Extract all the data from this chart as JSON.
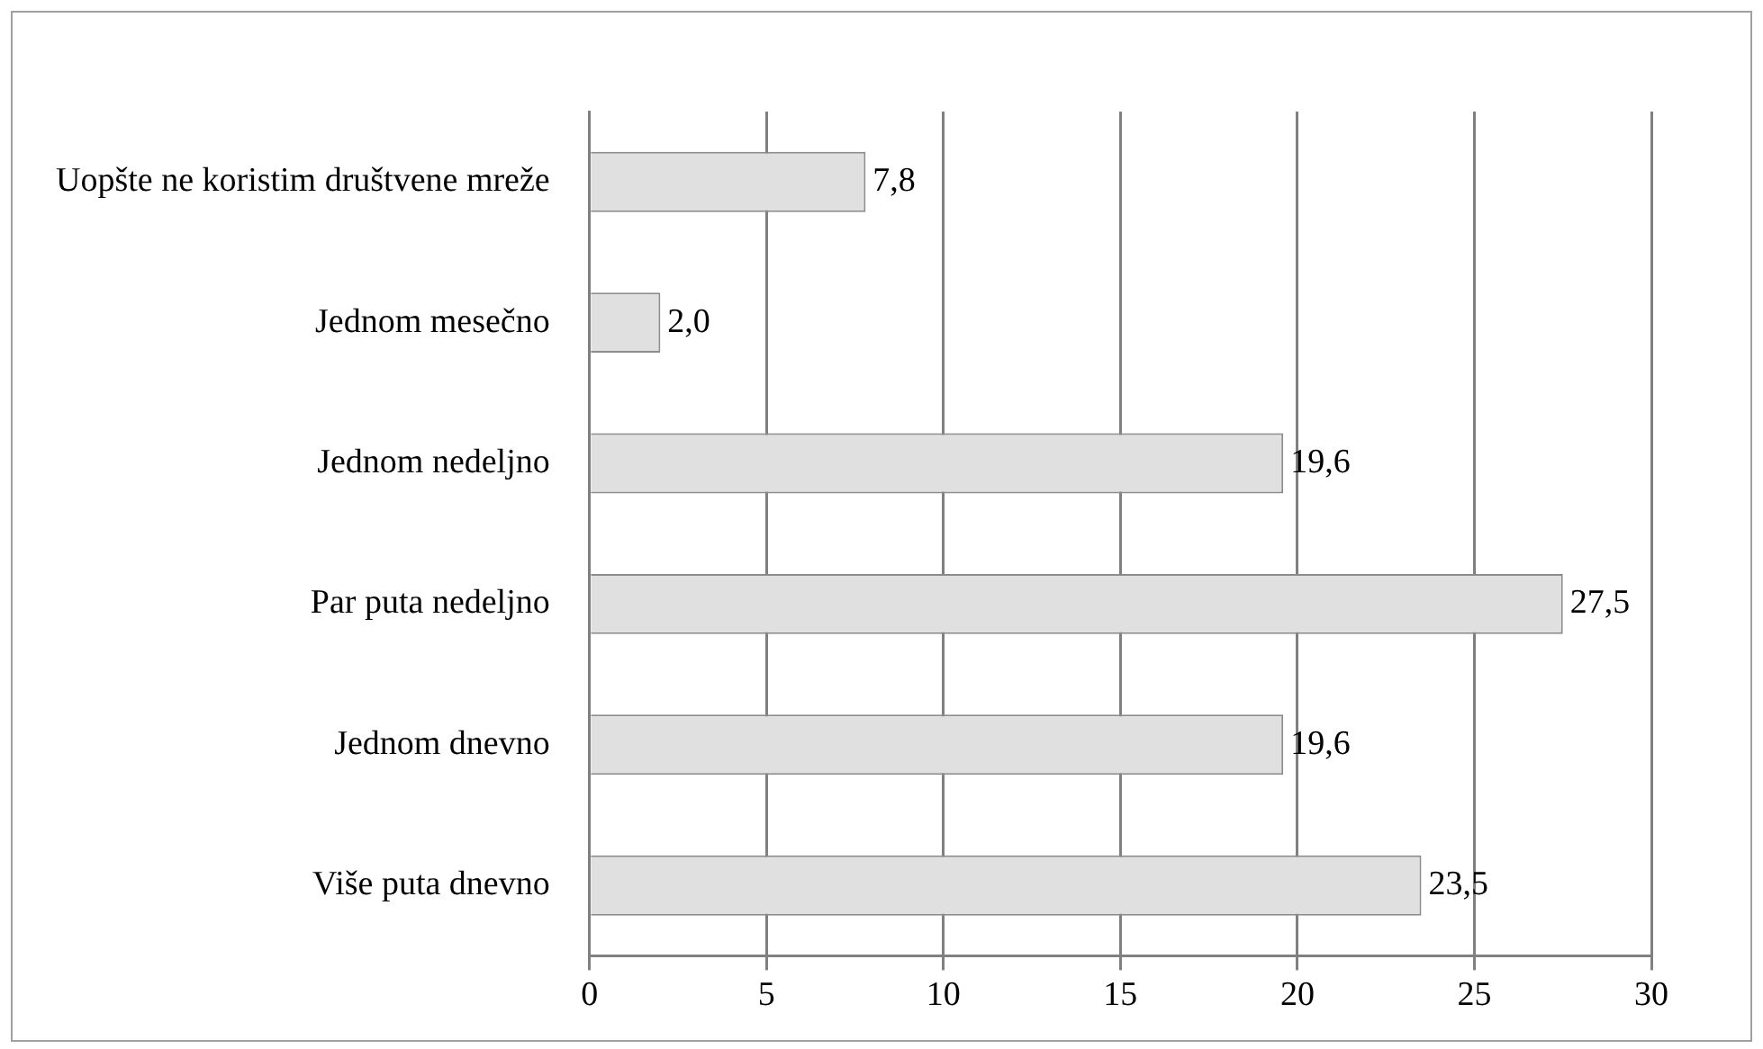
{
  "chart_data": {
    "type": "bar",
    "orientation": "horizontal",
    "categories": [
      "Uopšte ne koristim društvene mreže",
      "Jednom mesečno",
      "Jednom nedeljno",
      "Par puta nedeljno",
      "Jednom dnevno",
      "Više puta dnevno"
    ],
    "values": [
      7.8,
      2.0,
      19.6,
      27.5,
      19.6,
      23.5
    ],
    "color": "#e0e0e0",
    "value_labels": [
      "7,8",
      "2,0",
      "19,6",
      "27,5",
      "19,6",
      "23,5"
    ],
    "xlim": [
      0,
      30
    ],
    "xticks": [
      0,
      5,
      10,
      15,
      20,
      25,
      30
    ],
    "grid": "x"
  }
}
